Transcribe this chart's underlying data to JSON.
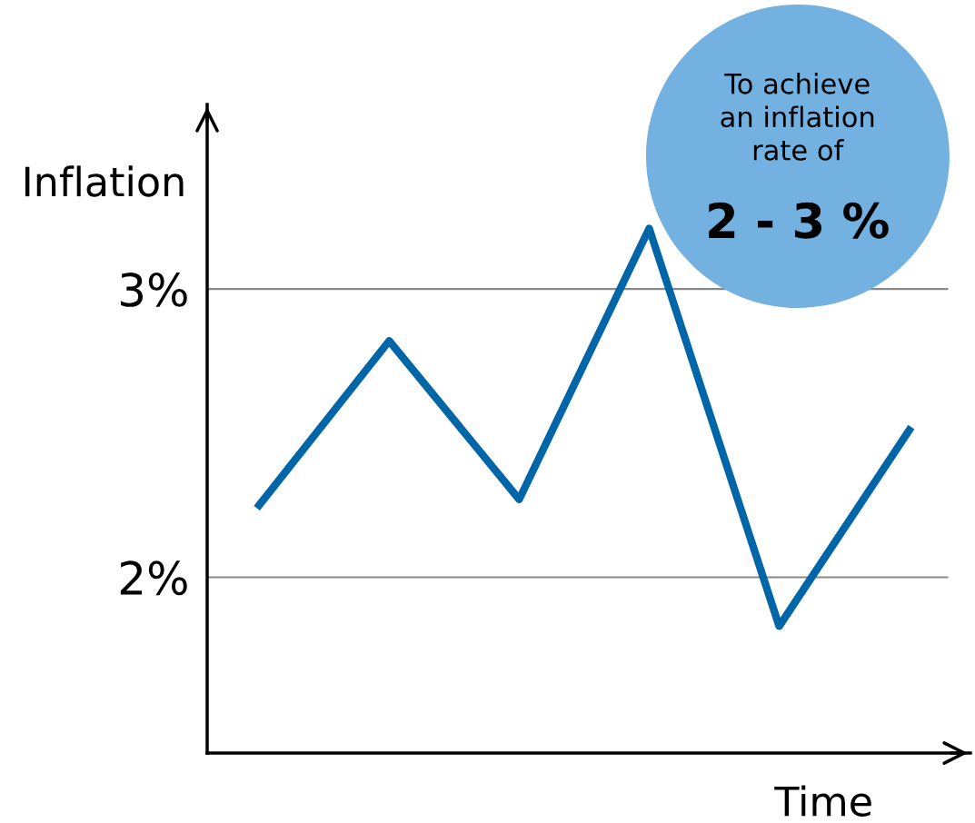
{
  "chart_data": {
    "type": "line",
    "xlabel": "Time",
    "ylabel": "Inflation",
    "categories": [
      null,
      null,
      null,
      null,
      null,
      null
    ],
    "series": [
      {
        "color": "#0066a8",
        "values": [
          2.25,
          2.82,
          2.27,
          3.21,
          1.83,
          2.51
        ]
      }
    ],
    "ylim": [
      1.39,
      3.64
    ],
    "yticks": [
      {
        "value": 2,
        "label": "2%"
      },
      {
        "value": 3,
        "label": "3%"
      }
    ],
    "grid": "y",
    "marker": "none",
    "line_style": "solid",
    "annotations": [
      "To achieve\nan inflation\nrate of",
      "2 - 3 %"
    ]
  }
}
